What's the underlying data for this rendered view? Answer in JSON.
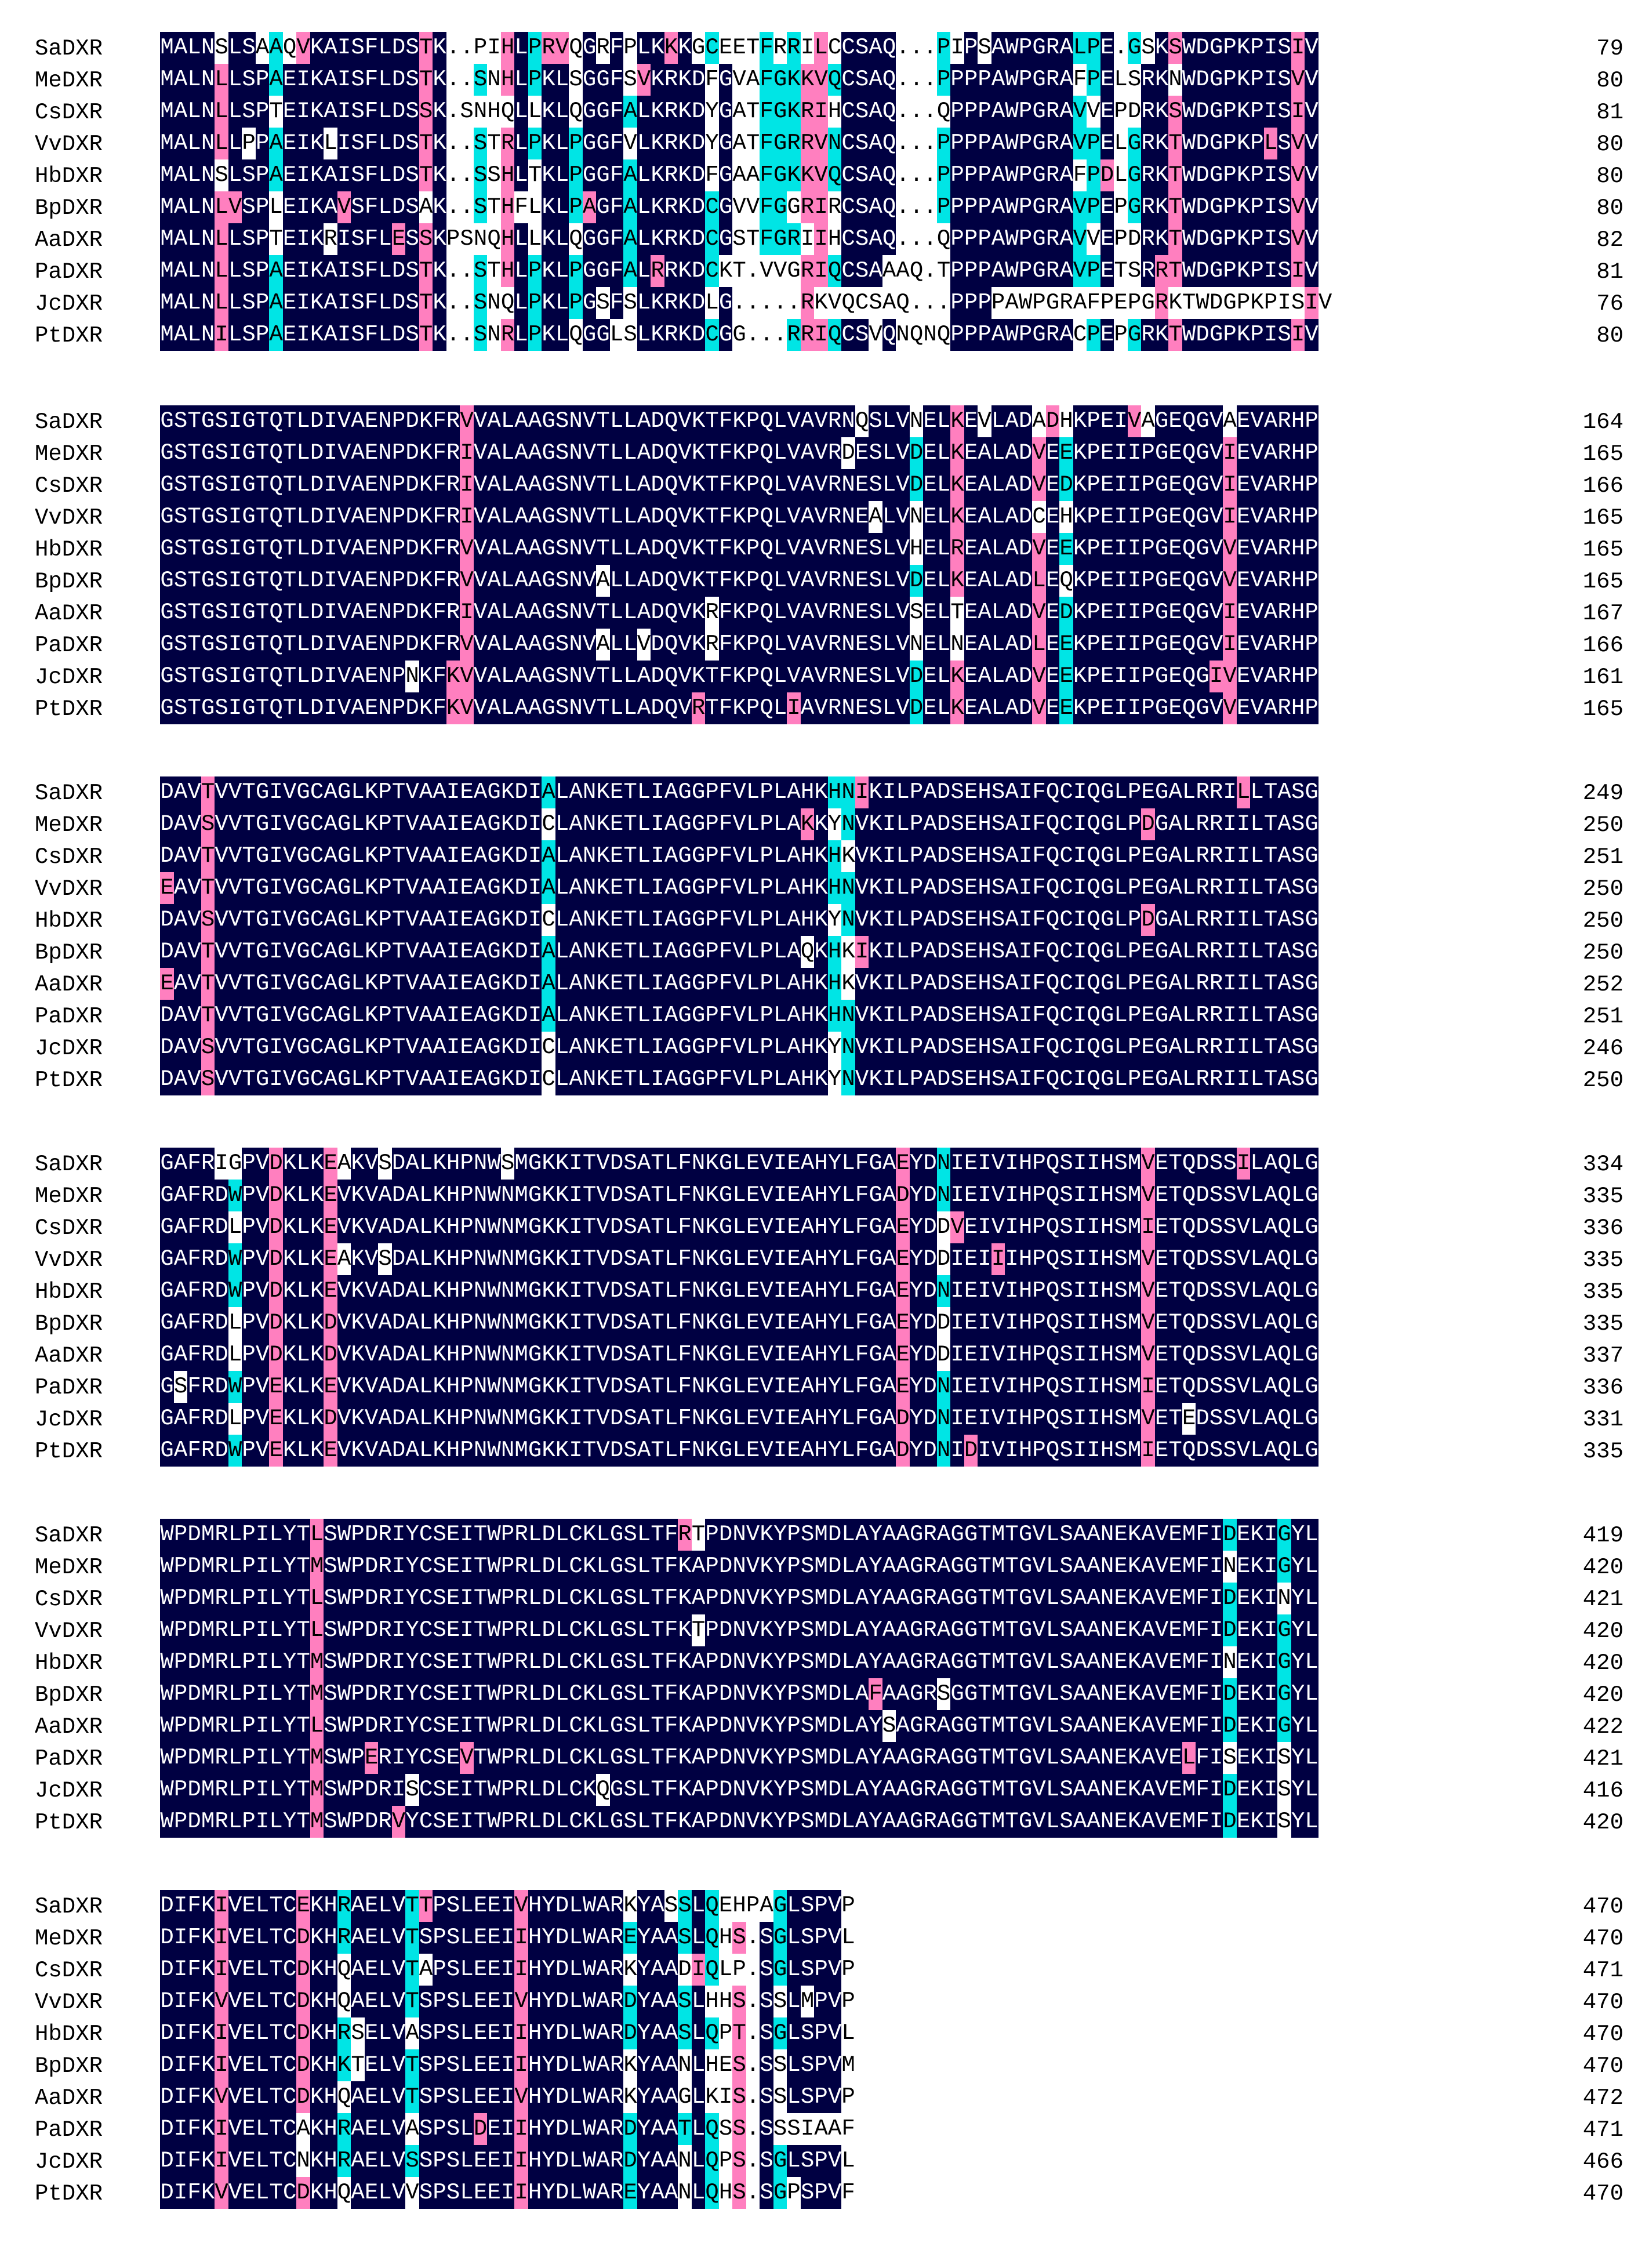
{
  "figure": "DXR protein multiple sequence alignment",
  "colors": {
    "identical": "#000042",
    "high_similarity": "#ff7fbf",
    "low_similarity": "#00e5e5",
    "none": "#ffffff",
    "text_on_dark": "#ffffff",
    "text_on_light": "#000000"
  },
  "species": [
    "SaDXR",
    "MeDXR",
    "CsDXR",
    "VvDXR",
    "HbDXR",
    "BpDXR",
    "AaDXR",
    "PaDXR",
    "JcDXR",
    "PtDXR"
  ],
  "blocks": [
    {
      "rows": [
        {
          "name": "SaDXR",
          "seq": "MALNSLSAAQVKAISFLDSTK..PIHLPRVQGRFPLKKKGCEETFRRILCCSAQ...PIPSAWPGRALPE.GSKSWDGPKPISIV",
          "end": "79"
        },
        {
          "name": "MeDXR",
          "seq": "MALNLLSPAEIKAISFLDSTK..SNHLPKLSGGFSVKRKDFGVAFGKKVQCSAQ...PPPPAWPGRAFPELSRKNWDGPKPISVV",
          "end": "80"
        },
        {
          "name": "CsDXR",
          "seq": "MALNLLSPTEIKAISFLDSSK.SNHQLLKLQGGFALKRKDYGATFGKRIHCSAQ...QPPPAWPGRAVVEPDRKSWDGPKPISIV",
          "end": "81"
        },
        {
          "name": "VvDXR",
          "seq": "MALNLLPPAEIKLISFLDSTK..STRLPKLPGGFVLKRKDYGATFGRRVNCSAQ...PPPPAWPGRAVPELGRKTWDGPKPLSVV",
          "end": "80"
        },
        {
          "name": "HbDXR",
          "seq": "MALNSLSPAEIKAISFLDSTK..SSHLTKLPGGFALKRKDFGAAFGKKVQCSAQ...PPPPAWPGRAFPDLGRKTWDGPKPISVV",
          "end": "80"
        },
        {
          "name": "BpDXR",
          "seq": "MALNLVSPLEIKAVSFLDSAK..STHFLKLPAGFALKRKDCGVVFGGRIRCSAQ...PPPPAWPGRAVPEPGRKTWDGPKPISVV",
          "end": "80"
        },
        {
          "name": "AaDXR",
          "seq": "MALNLLSPTEIKRISFLESSKPSNQHLLKLQGGFALKRKDCGSTFGRIIHCSAQ...QPPPAWPGRAVVEPDRKTWDGPKPISVV",
          "end": "82"
        },
        {
          "name": "PaDXR",
          "seq": "MALNLLSPAEIKAISFLDSTK..STHLPKLPGGFALRRKDCKT.VVGRIQCSAAAQ.TPPPAWPGRAVPETSRRTWDGPKPISIV",
          "end": "81"
        },
        {
          "name": "JcDXR",
          "seq": "MALNLLSPAEIKAISFLDSTK..SNQLPKLPGSFSLKRKDLG.....RKVQCSAQ...PPPPAWPGRAFPEPGRKTWDGPKPISIV",
          "end": "76"
        },
        {
          "name": "PtDXR",
          "seq": "MALNILSPAEIKAISFLDSTK..SNRLPKLQGGLSLKRKDCGG...RRIQCSVQNQNQPPPAWPGRACPEPGRKTWDGPKPISIV",
          "end": "80"
        }
      ]
    },
    {
      "rows": [
        {
          "name": "SaDXR",
          "seq": "GSTGSIGTQTLDIVAENPDKFRVVALAAGSNVTLLADQVKTFKPQLVAVRNQSLVNELKEVLADADHKPEIVAGEQGVAEVARHP",
          "end": "164"
        },
        {
          "name": "MeDXR",
          "seq": "GSTGSIGTQTLDIVAENPDKFRIVALAAGSNVTLLADQVKTFKPQLVAVRDESLVDELKEALADVEEKPEIIPGEQGVIEVARHP",
          "end": "165"
        },
        {
          "name": "CsDXR",
          "seq": "GSTGSIGTQTLDIVAENPDKFRIVALAAGSNVTLLADQVKTFKPQLVAVRNESLVDELKEALADVEDKPEIIPGEQGVIEVARHP",
          "end": "166"
        },
        {
          "name": "VvDXR",
          "seq": "GSTGSIGTQTLDIVAENPDKFRIVALAAGSNVTLLADQVKTFKPQLVAVRNEALVNELKEALADCEHKPEIIPGEQGVIEVARHP",
          "end": "165"
        },
        {
          "name": "HbDXR",
          "seq": "GSTGSIGTQTLDIVAENPDKFRVVALAAGSNVTLLADQVKTFKPQLVAVRNESLVHELREALADVEEKPEIIPGEQGVVEVARHP",
          "end": "165"
        },
        {
          "name": "BpDXR",
          "seq": "GSTGSIGTQTLDIVAENPDKFRVVALAAGSNVALLADQVKTFKPQLVAVRNESLVDELKEALADLEQKPEIIPGEQGVVEVARHP",
          "end": "165"
        },
        {
          "name": "AaDXR",
          "seq": "GSTGSIGTQTLDIVAENPDKFRIVALAAGSNVTLLADQVKRFKPQLVAVRNESLVSELTEALADVEDKPEIIPGEQGVIEVARHP",
          "end": "167"
        },
        {
          "name": "PaDXR",
          "seq": "GSTGSIGTQTLDIVAENPDKFRVVALAAGSNVALLVDQVKRFKPQLVAVRNESLVNELNEALADLEEKPEIIPGEQGVIEVARHP",
          "end": "166"
        },
        {
          "name": "JcDXR",
          "seq": "GSTGSIGTQTLDIVAENPNKFKVVALAAGSNVTLLADQVKTFKPQLVAVRNESLVDELKEALADVEEKPEIIPGEQGIVEVARHP",
          "end": "161"
        },
        {
          "name": "PtDXR",
          "seq": "GSTGSIGTQTLDIVAENPDKFKVVALAAGSNVTLLADQVRTFKPQLIAVRNESLVDELKEALADVEEKPEIIPGEQGVVEVARHP",
          "end": "165"
        }
      ]
    },
    {
      "rows": [
        {
          "name": "SaDXR",
          "seq": "DAVTVVTGIVGCAGLKPTVAAIEAGKDIALANKETLIAGGPFVLPLAHKHNIKILPADSEHSAIFQCIQGLPEGALRRILLTASG",
          "end": "249"
        },
        {
          "name": "MeDXR",
          "seq": "DAVSVVTGIVGCAGLKPTVAAIEAGKDICLANKETLIAGGPFVLPLAKKYNVKILPADSEHSAIFQCIQGLPDGALRRIILTASG",
          "end": "250"
        },
        {
          "name": "CsDXR",
          "seq": "DAVTVVTGIVGCAGLKPTVAAIEAGKDIALANKETLIAGGPFVLPLAHKHKVKILPADSEHSAIFQCIQGLPEGALRRIILTASG",
          "end": "251"
        },
        {
          "name": "VvDXR",
          "seq": "EAVTVVTGIVGCAGLKPTVAAIEAGKDIALANKETLIAGGPFVLPLAHKHNVKILPADSEHSAIFQCIQGLPEGALRRIILTASG",
          "end": "250"
        },
        {
          "name": "HbDXR",
          "seq": "DAVSVVTGIVGCAGLKPTVAAIEAGKDICLANKETLIAGGPFVLPLAHKYNVKILPADSEHSAIFQCIQGLPDGALRRIILTASG",
          "end": "250"
        },
        {
          "name": "BpDXR",
          "seq": "DAVTVVTGIVGCAGLKPTVAAIEAGKDIALANKETLIAGGPFVLPLAQKHKIKILPADSEHSAIFQCIQGLPEGALRRIILTASG",
          "end": "250"
        },
        {
          "name": "AaDXR",
          "seq": "EAVTVVTGIVGCAGLKPTVAAIEAGKDIALANKETLIAGGPFVLPLAHKHKVKILPADSEHSAIFQCIQGLPEGALRRIILTASG",
          "end": "252"
        },
        {
          "name": "PaDXR",
          "seq": "DAVTVVTGIVGCAGLKPTVAAIEAGKDIALANKETLIAGGPFVLPLAHKHNVKILPADSEHSAIFQCIQGLPEGALRRIILTASG",
          "end": "251"
        },
        {
          "name": "JcDXR",
          "seq": "DAVSVVTGIVGCAGLKPTVAAIEAGKDICLANKETLIAGGPFVLPLAHKYNVKILPADSEHSAIFQCIQGLPEGALRRIILTASG",
          "end": "246"
        },
        {
          "name": "PtDXR",
          "seq": "DAVSVVTGIVGCAGLKPTVAAIEAGKDICLANKETLIAGGPFVLPLAHKYNVKILPADSEHSAIFQCIQGLPEGALRRIILTASG",
          "end": "250"
        }
      ]
    },
    {
      "rows": [
        {
          "name": "SaDXR",
          "seq": "GAFRIGPVDKLKEAKVSDALKHPNWSMGKKITVDSATLFNKGLEVIEAHYLFGAEYDNIEIVIHPQSIIHSMVETQDSSILAQLG",
          "end": "334"
        },
        {
          "name": "MeDXR",
          "seq": "GAFRDWPVDKLKEVKVADALKHPNWNMGKKITVDSATLFNKGLEVIEAHYLFGADYDNIEIVIHPQSIIHSMVETQDSSVLAQLG",
          "end": "335"
        },
        {
          "name": "CsDXR",
          "seq": "GAFRDLPVDKLKEVKVADALKHPNWNMGKKITVDSATLFNKGLEVIEAHYLFGAEYDDVEIVIHPQSIIHSMIETQDSSVLAQLG",
          "end": "336"
        },
        {
          "name": "VvDXR",
          "seq": "GAFRDWPVDKLKEAKVSDALKHPNWNMGKKITVDSATLFNKGLEVIEAHYLFGAEYDDIEIIIHPQSIIHSMVETQDSSVLAQLG",
          "end": "335"
        },
        {
          "name": "HbDXR",
          "seq": "GAFRDWPVDKLKEVKVADALKHPNWNMGKKITVDSATLFNKGLEVIEAHYLFGAEYDNIEIVIHPQSIIHSMVETQDSSVLAQLG",
          "end": "335"
        },
        {
          "name": "BpDXR",
          "seq": "GAFRDLPVDKLKDVKVADALKHPNWNMGKKITVDSATLFNKGLEVIEAHYLFGAEYDDIEIVIHPQSIIHSMVETQDSSVLAQLG",
          "end": "335"
        },
        {
          "name": "AaDXR",
          "seq": "GAFRDLPVDKLKDVKVADALKHPNWNMGKKITVDSATLFNKGLEVIEAHYLFGAEYDDIEIVIHPQSIIHSMVETQDSSVLAQLG",
          "end": "337"
        },
        {
          "name": "PaDXR",
          "seq": "GSFRDWPVEKLKEVKVADALKHPNWNMGKKITVDSATLFNKGLEVIEAHYLFGAEYDNIEIVIHPQSIIHSMIETQDSSVLAQLG",
          "end": "336"
        },
        {
          "name": "JcDXR",
          "seq": "GAFRDLPVEKLKDVKVADALKHPNWNMGKKITVDSATLFNKGLEVIEAHYLFGADYDNIEIVIHPQSIIHSMVETEDSSVLAQLG",
          "end": "331"
        },
        {
          "name": "PtDXR",
          "seq": "GAFRDWPVEKLKEVKVADALKHPNWNMGKKITVDSATLFNKGLEVIEAHYLFGADYDNIDIVIHPQSIIHSMIETQDSSVLAQLG",
          "end": "335"
        }
      ]
    },
    {
      "rows": [
        {
          "name": "SaDXR",
          "seq": "WPDMRLPILYTLSWPDRIYCSEITWPRLDLCKLGSLTFRTPDNVKYPSMDLAYAAGRAGGTMTGVLSAANEKAVEMFIDEKIGYL",
          "end": "419"
        },
        {
          "name": "MeDXR",
          "seq": "WPDMRLPILYTMSWPDRIYCSEITWPRLDLCKLGSLTFKAPDNVKYPSMDLAYAAGRAGGTMTGVLSAANEKAVEMFINEKIGYL",
          "end": "420"
        },
        {
          "name": "CsDXR",
          "seq": "WPDMRLPILYTLSWPDRIYCSEITWPRLDLCKLGSLTFKAPDNVKYPSMDLAYAAGRAGGTMTGVLSAANEKAVEMFIDEKINYL",
          "end": "421"
        },
        {
          "name": "VvDXR",
          "seq": "WPDMRLPILYTLSWPDRIYCSEITWPRLDLCKLGSLTFKTPDNVKYPSMDLAYAAGRAGGTMTGVLSAANEKAVEMFIDEKIGYL",
          "end": "420"
        },
        {
          "name": "HbDXR",
          "seq": "WPDMRLPILYTMSWPDRIYCSEITWPRLDLCKLGSLTFKAPDNVKYPSMDLAYAAGRAGGTMTGVLSAANEKAVEMFINEKIGYL",
          "end": "420"
        },
        {
          "name": "BpDXR",
          "seq": "WPDMRLPILYTMSWPDRIYCSEITWPRLDLCKLGSLTFKAPDNVKYPSMDLAFAAGRSGGTMTGVLSAANEKAVEMFIDEKIGYL",
          "end": "420"
        },
        {
          "name": "AaDXR",
          "seq": "WPDMRLPILYTLSWPDRIYCSEITWPRLDLCKLGSLTFKAPDNVKYPSMDLAYSAGRAGGTMTGVLSAANEKAVEMFIDEKIGYL",
          "end": "422"
        },
        {
          "name": "PaDXR",
          "seq": "WPDMRLPILYTMSWPERIYCSEVTWPRLDLCKLGSLTFKAPDNVKYPSMDLAYAAGRAGGTMTGVLSAANEKAVELFISEKISYL",
          "end": "421"
        },
        {
          "name": "JcDXR",
          "seq": "WPDMRLPILYTMSWPDRISCSEITWPRLDLCKQGSLTFKAPDNVKYPSMDLAYAAGRAGGTMTGVLSAANEKAVEMFIDEKISYL",
          "end": "416"
        },
        {
          "name": "PtDXR",
          "seq": "WPDMRLPILYTMSWPDRVYCSEITWPRLDLCKLGSLTFKAPDNVKYPSMDLAYAAGRAGGTMTGVLSAANEKAVEMFIDEKISYL",
          "end": "420"
        }
      ]
    },
    {
      "rows": [
        {
          "name": "SaDXR",
          "seq": "DIFKIVELTCEKHRAELVTTPSLEEIVHYDLWARKYASSLQEHPAGLSPVP",
          "end": "470"
        },
        {
          "name": "MeDXR",
          "seq": "DIFKIVELTCDKHRAELVTSPSLEEIIHYDLWAREYAASLQHS.SGLSPVL",
          "end": "470"
        },
        {
          "name": "CsDXR",
          "seq": "DIFKIVELTCDKHQAELVTAPSLEEIIHYDLWARKYAADIQLP.SGLSPVP",
          "end": "471"
        },
        {
          "name": "VvDXR",
          "seq": "DIFKVVELTCDKHQAELVTSPSLEEIVHYDLWARDYAASLHHS.SSLMPVP",
          "end": "470"
        },
        {
          "name": "HbDXR",
          "seq": "DIFKIVELTCDKHRSELVASPSLEEIIHYDLWARDYAASLQPT.SGLSPVL",
          "end": "470"
        },
        {
          "name": "BpDXR",
          "seq": "DIFKIVELTCDKHKTELVTSPSLEEIIHYDLWARKYAANLHES.SSLSPVM",
          "end": "470"
        },
        {
          "name": "AaDXR",
          "seq": "DIFKVVELTCDKHQAELVTSPSLEEIVHYDLWARKYAAGLKIS.SSLSPVP",
          "end": "472"
        },
        {
          "name": "PaDXR",
          "seq": "DIFKIVELTCAKHRAELVASPSLDEIIHYDLWARDYAATLQSS.SSSIAAF",
          "end": "471"
        },
        {
          "name": "JcDXR",
          "seq": "DIFKIVELTCNKHRAELVSSPSLEEIIHYDLWARDYAANLQPS.SGLSPVL",
          "end": "466"
        },
        {
          "name": "PtDXR",
          "seq": "DIFKVVELTCDKHQAELVVSPSLEEIIHYDLWAREYAANLQHS.SGPSPVF",
          "end": "470"
        }
      ]
    }
  ]
}
